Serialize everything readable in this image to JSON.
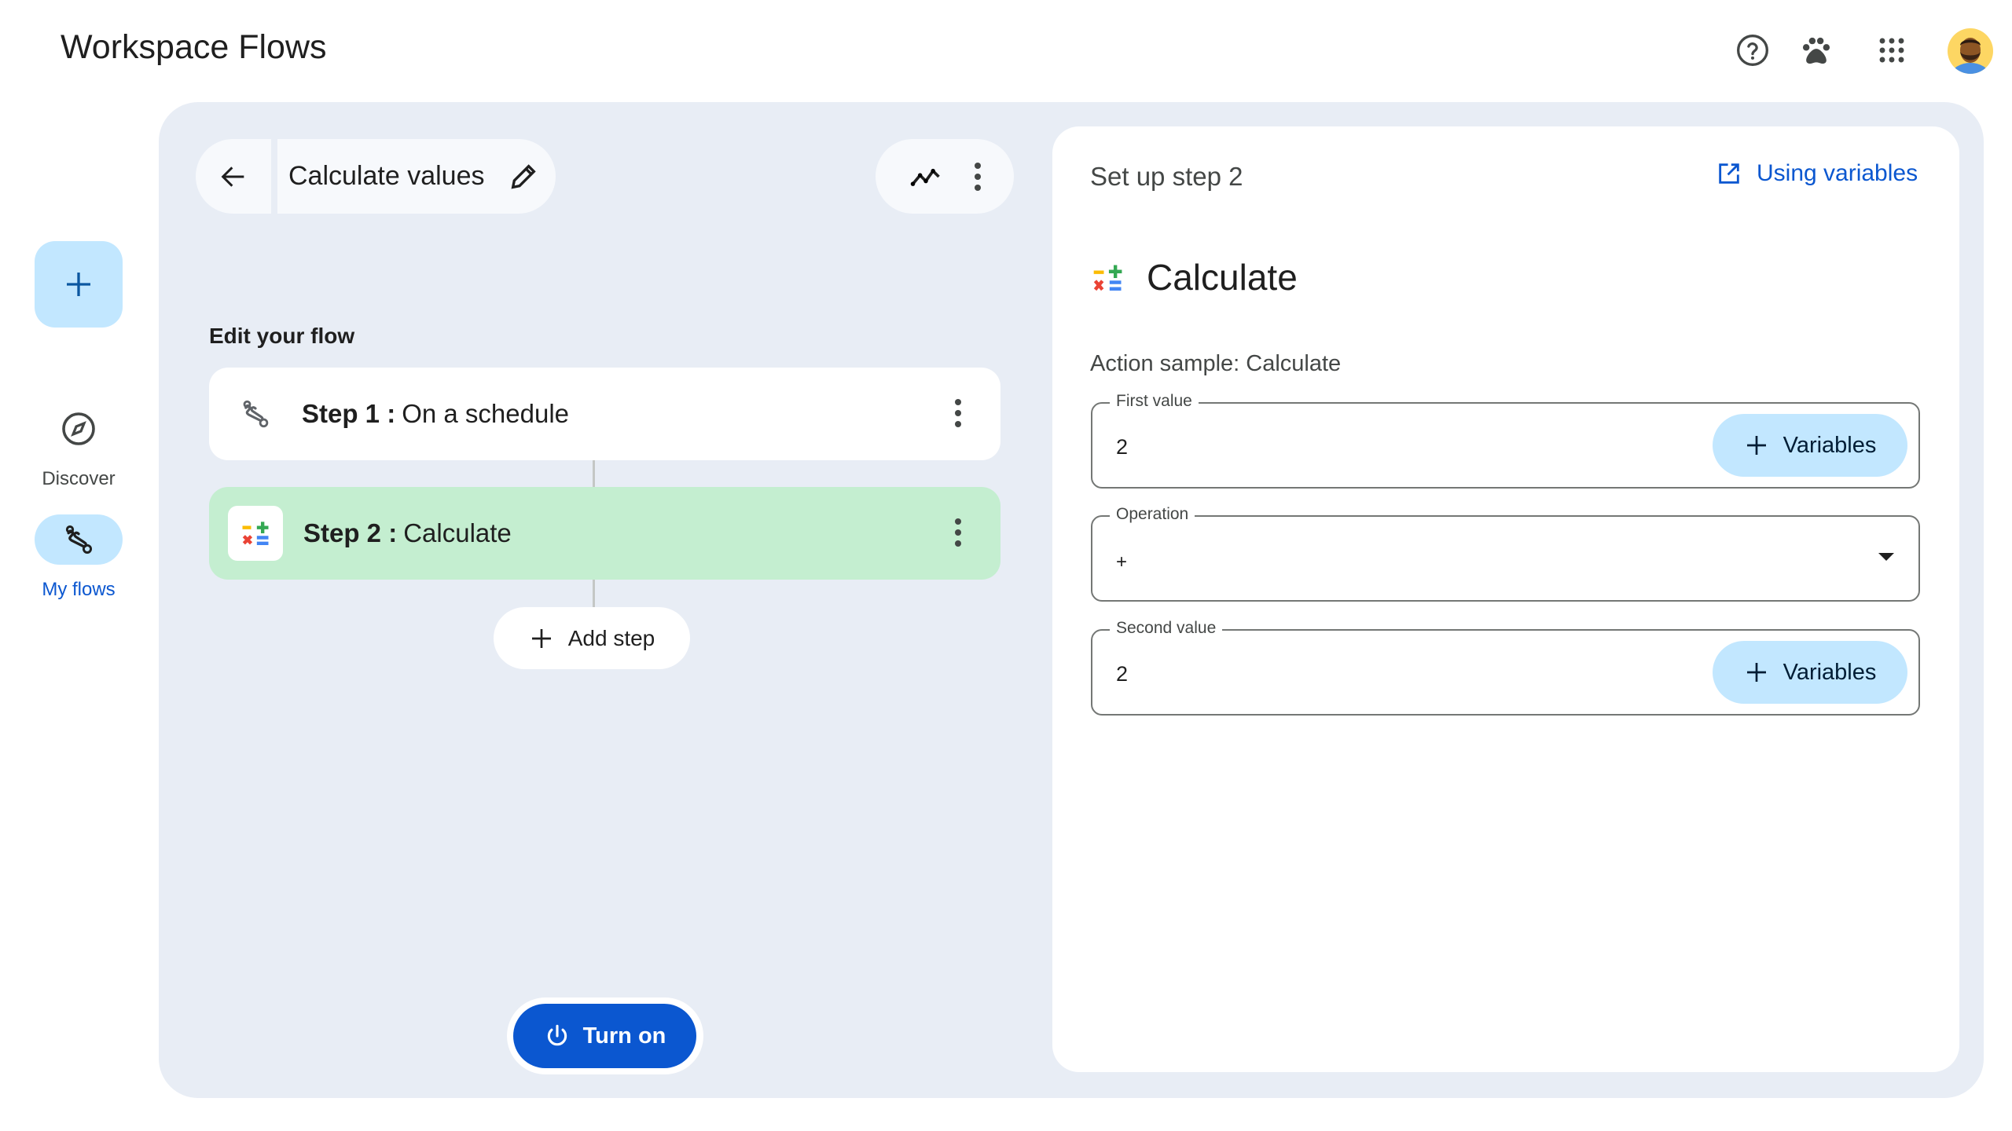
{
  "app": {
    "title": "Workspace Flows"
  },
  "topbar": {
    "icons": [
      "help-icon",
      "paw-icon",
      "apps-grid-icon",
      "avatar"
    ]
  },
  "nav": {
    "create_icon": "plus-icon",
    "items": [
      {
        "label": "Discover",
        "icon": "compass-icon",
        "active": false
      },
      {
        "label": "My flows",
        "icon": "flows-icon",
        "active": true
      }
    ]
  },
  "editor": {
    "flow_name": "Calculate values",
    "section_label": "Edit your flow",
    "steps": [
      {
        "prefix": "Step 1 :",
        "name": "On a schedule",
        "selected": false
      },
      {
        "prefix": "Step 2 :",
        "name": "Calculate",
        "selected": true
      }
    ],
    "add_step_label": "Add step",
    "turn_on_label": "Turn on"
  },
  "panel": {
    "title": "Set up step 2",
    "help_link": "Using variables",
    "action_title": "Calculate",
    "action_sample": "Action sample: Calculate",
    "fields": [
      {
        "label": "First value",
        "value": "2",
        "button": "Variables"
      },
      {
        "label": "Operation",
        "value": "+"
      },
      {
        "label": "Second value",
        "value": "2",
        "button": "Variables"
      }
    ]
  },
  "colors": {
    "accent": "#0b57d0",
    "selected_step": "#c4eed0",
    "tonal": "#c2e7ff",
    "background": "#e8edf5"
  }
}
